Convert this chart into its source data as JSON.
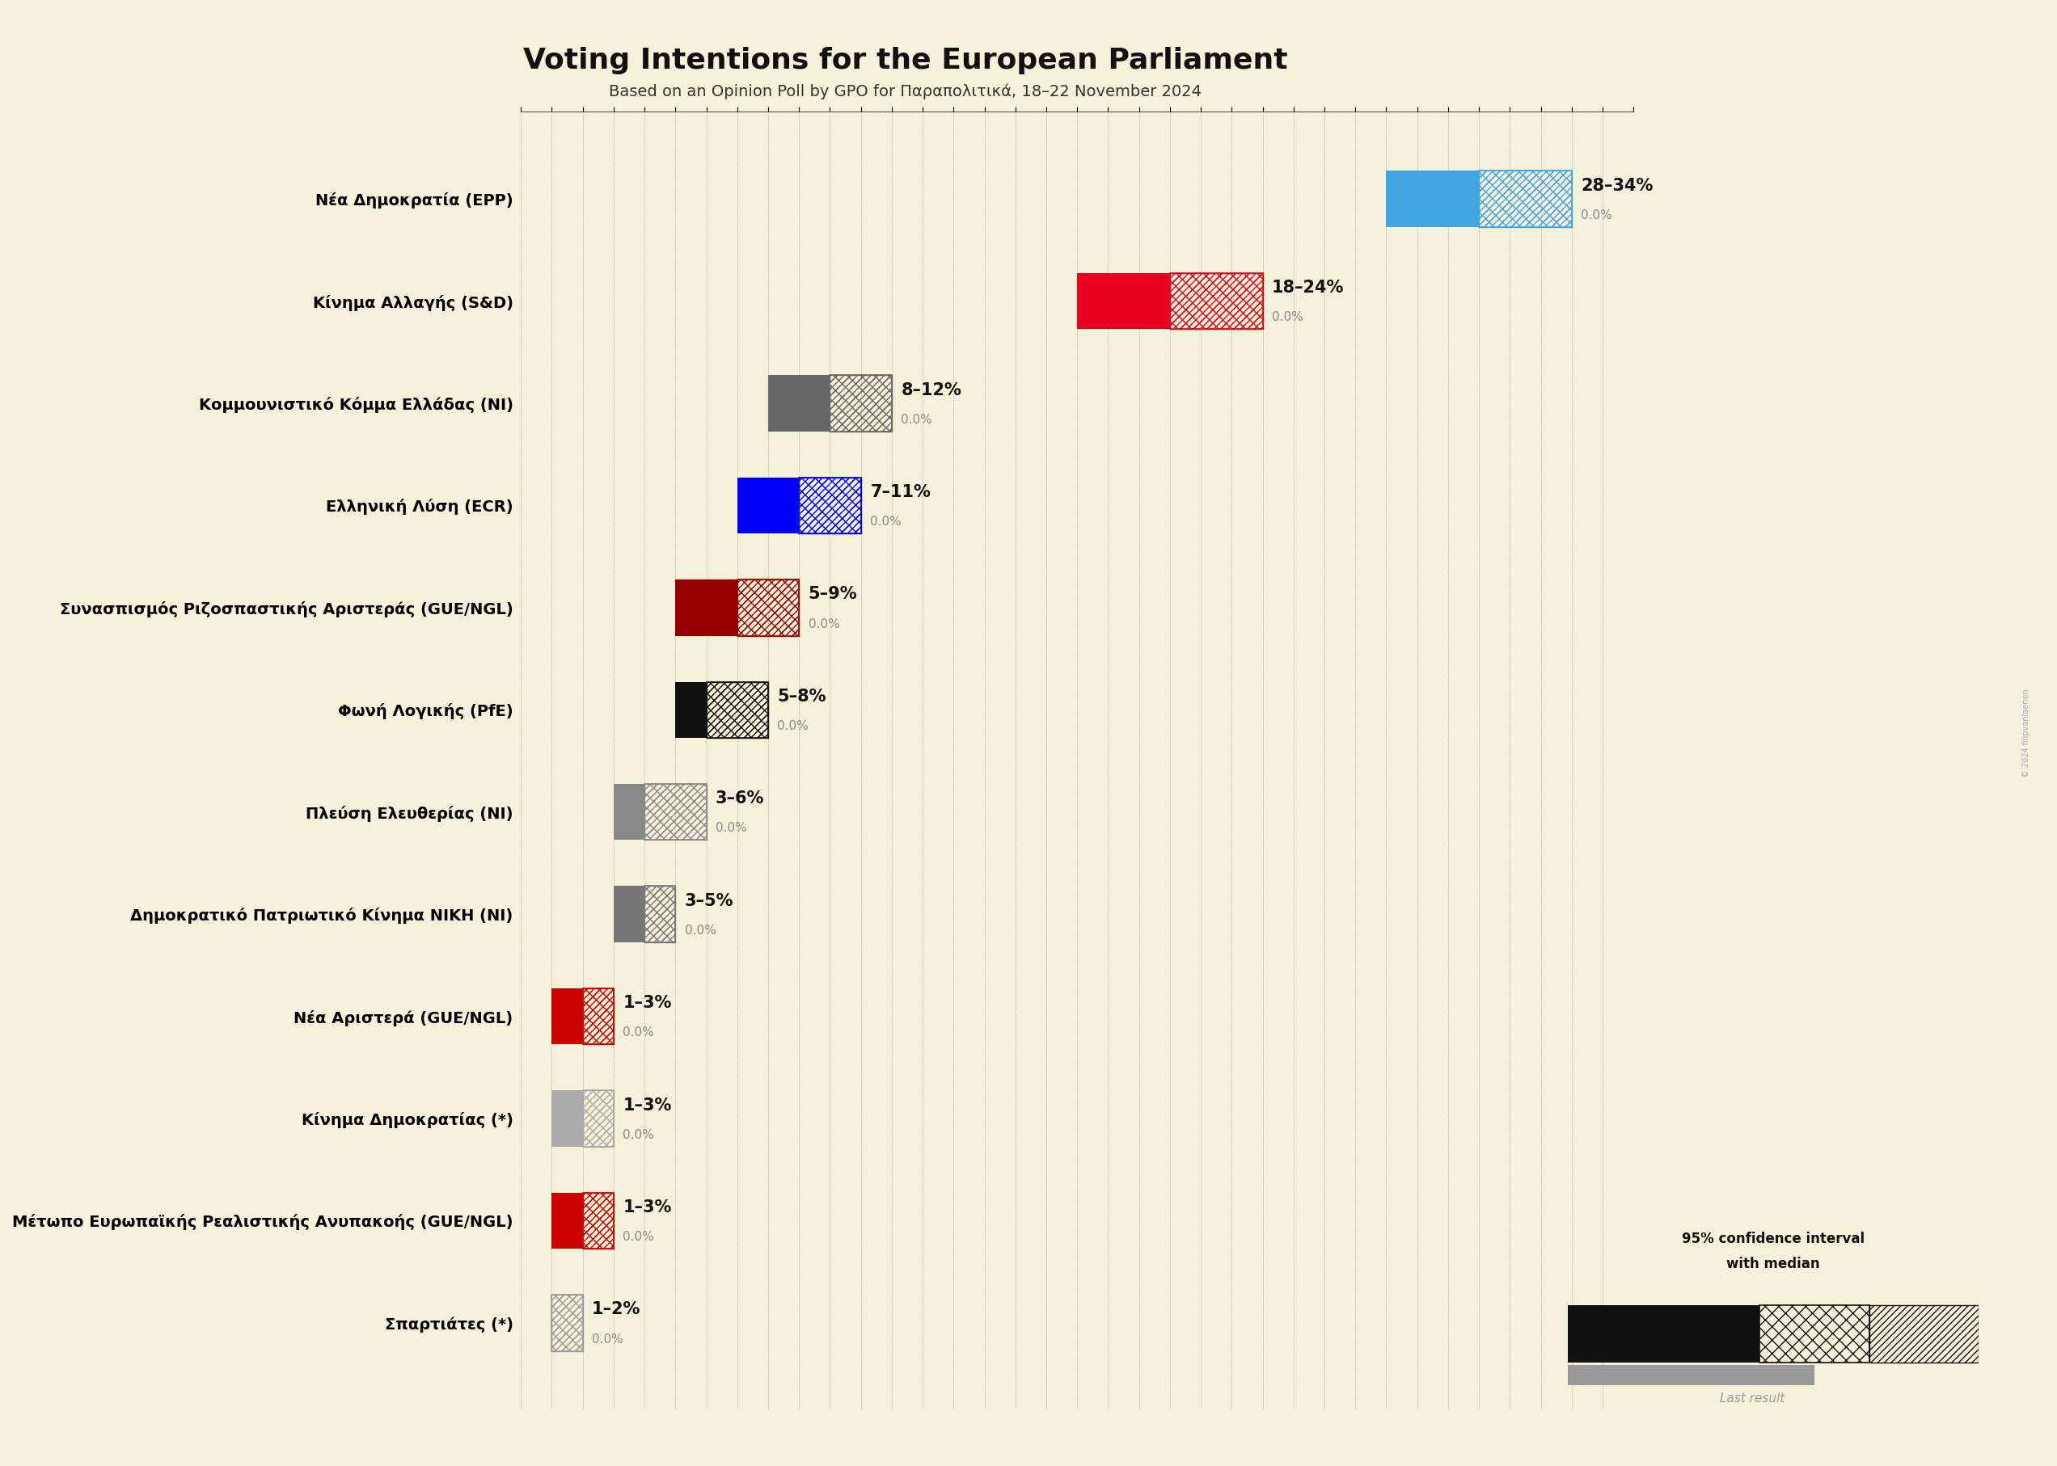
{
  "title": "Voting Intentions for the European Parliament",
  "subtitle": "Based on an Opinion Poll by GPO for Παραπολιτικά, 18–22 November 2024",
  "background_color": "#f5f2dc",
  "watermark": "© 2024 filipvanlaenen",
  "parties": [
    {
      "name": "Νέα Δημοκρατία (EPP)",
      "low": 28,
      "median": 31,
      "high": 34,
      "last": 0.0,
      "color": "#42a4e0"
    },
    {
      "name": "Κίνημα Αλλαγής (S&D)",
      "low": 18,
      "median": 21,
      "high": 24,
      "last": 0.0,
      "color": "#e8001c"
    },
    {
      "name": "Κομμουνιστικό Κόμμα Ελλάδας (NI)",
      "low": 8,
      "median": 10,
      "high": 12,
      "last": 0.0,
      "color": "#666666"
    },
    {
      "name": "Ελληνική Λύση (ECR)",
      "low": 7,
      "median": 9,
      "high": 11,
      "last": 0.0,
      "color": "#0000ff"
    },
    {
      "name": "Συνασπισμός Ριζοσπαστικής Αριστεράς (GUE/NGL)",
      "low": 5,
      "median": 7,
      "high": 9,
      "last": 0.0,
      "color": "#990000"
    },
    {
      "name": "Φωνή Λογικής (PfE)",
      "low": 5,
      "median": 6,
      "high": 8,
      "last": 0.0,
      "color": "#111111"
    },
    {
      "name": "Πλεύση Ελευθερίας (NI)",
      "low": 3,
      "median": 4,
      "high": 6,
      "last": 0.0,
      "color": "#888888"
    },
    {
      "name": "Δημοκρατικό Πατριωτικό Κίνημα ΝΙΚΗ (NI)",
      "low": 3,
      "median": 4,
      "high": 5,
      "last": 0.0,
      "color": "#777777"
    },
    {
      "name": "Νέα Αριστερά (GUE/NGL)",
      "low": 1,
      "median": 2,
      "high": 3,
      "last": 0.0,
      "color": "#cc0000"
    },
    {
      "name": "Κίνημα Δημοκρατίας (*)",
      "low": 1,
      "median": 2,
      "high": 3,
      "last": 0.0,
      "color": "#aaaaaa"
    },
    {
      "name": "Μέτωπο Ευρωπαϊκής Ρεαλιστικής Ανυπακοής (GUE/NGL)",
      "low": 1,
      "median": 2,
      "high": 3,
      "last": 0.0,
      "color": "#cc0000"
    },
    {
      "name": "Σπαρτιάτες (*)",
      "low": 1,
      "median": 1,
      "high": 2,
      "last": 0.0,
      "color": "#999999"
    }
  ],
  "xlim": [
    0,
    36
  ],
  "title_fontsize": 26,
  "subtitle_fontsize": 14,
  "label_fontsize": 14,
  "range_fontsize": 15,
  "last_fontsize": 11,
  "legend_text1": "95% confidence interval",
  "legend_text2": "with median",
  "legend_last": "Last result"
}
